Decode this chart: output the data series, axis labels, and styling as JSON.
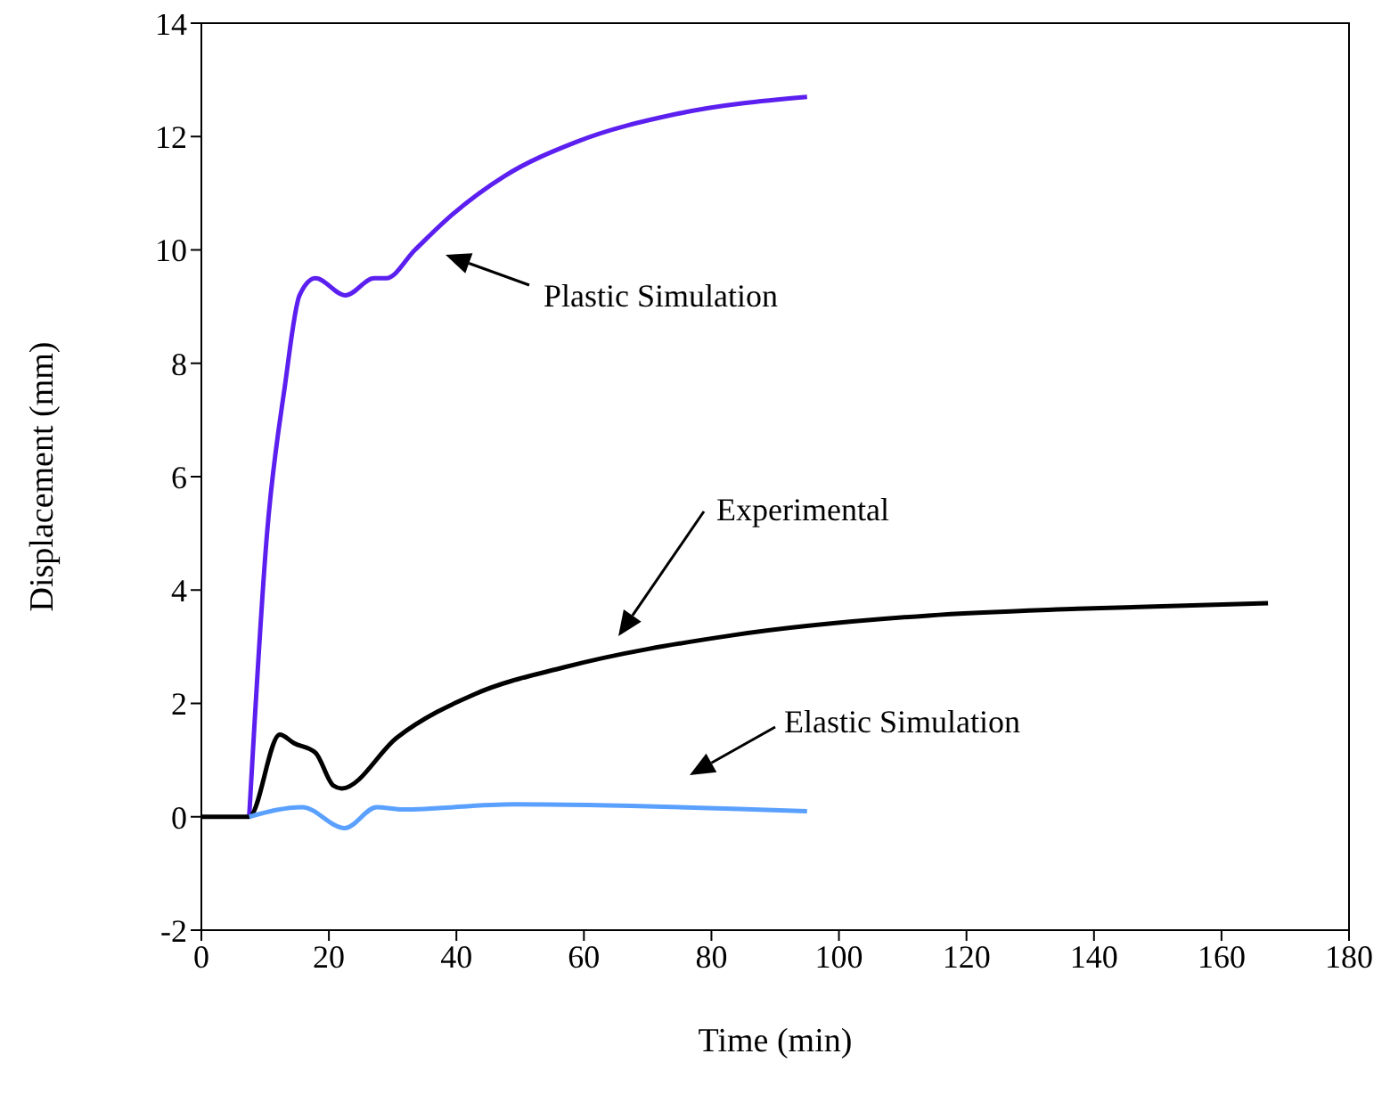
{
  "chart_data": {
    "type": "line",
    "xlabel": "Time (min)",
    "ylabel": "Displacement (mm)",
    "xlim": [
      0,
      180
    ],
    "xticks": [
      0,
      20,
      40,
      60,
      80,
      100,
      120,
      140,
      160,
      180
    ],
    "ylim": [
      -2,
      14
    ],
    "yticks": [
      -2,
      0,
      2,
      4,
      6,
      8,
      10,
      12,
      14
    ],
    "marker": "none",
    "line_style": "solid",
    "series": [
      {
        "color": "#5b1ff0",
        "x": [
          7.5,
          10.3,
          13.1,
          15.4,
          17.9,
          22.6,
          27.1,
          29,
          33.5,
          39.1,
          47.5,
          58.7,
          74.6,
          95
        ],
        "values": [
          0,
          5.0,
          7.6,
          9.2,
          9.5,
          9.2,
          9.5,
          9.5,
          10.0,
          10.6,
          11.3,
          11.9,
          12.4,
          12.7
        ]
      },
      {
        "color": "#000000",
        "x": [
          0,
          7.5,
          12.3,
          14.5,
          17.9,
          20.7,
          22,
          30.7,
          43,
          57,
          83.2,
          114,
          137.4,
          167.3
        ],
        "values": [
          0,
          0,
          1.45,
          1.3,
          1.13,
          0.55,
          0.5,
          1.4,
          2.17,
          2.64,
          3.2,
          3.55,
          3.67,
          3.77
        ]
      },
      {
        "color": "#5aa0ff",
        "x": [
          7.5,
          15.8,
          22.5,
          27.5,
          31.6,
          49,
          95
        ],
        "values": [
          0,
          0.17,
          -0.2,
          0.17,
          0.13,
          0.22,
          0.1
        ]
      }
    ],
    "annotations": [
      "Plastic Simulation",
      "Experimental",
      "Elastic Simulation"
    ]
  }
}
